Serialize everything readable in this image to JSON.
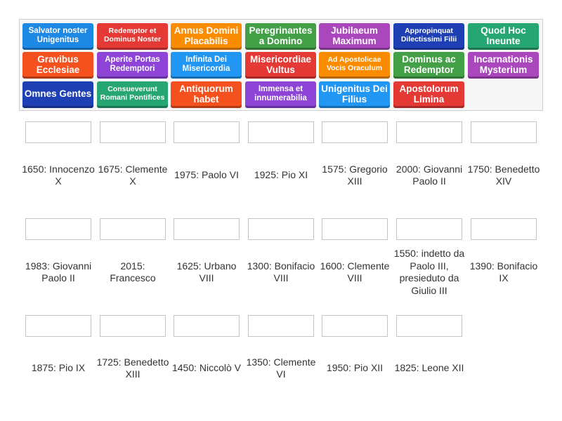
{
  "tiles": [
    {
      "text": "Salvator noster Unigenitus",
      "color": "#1e88e5"
    },
    {
      "text": "Redemptor et Dominus Noster",
      "color": "#e53935"
    },
    {
      "text": "Annus Domini Placabilis",
      "color": "#fb8c00"
    },
    {
      "text": "Peregrinantes a Domino",
      "color": "#43a047"
    },
    {
      "text": "Jubilaeum Maximum",
      "color": "#ab47bc"
    },
    {
      "text": "Appropinquat Dilectissimi Filii",
      "color": "#1e40b4"
    },
    {
      "text": "Quod Hoc Ineunte",
      "color": "#26a672"
    },
    {
      "text": "Gravibus Ecclesiae",
      "color": "#f4511e"
    },
    {
      "text": "Aperite Portas Redemptori",
      "color": "#8e44d6"
    },
    {
      "text": "Infinita Dei Misericordia",
      "color": "#2196f3"
    },
    {
      "text": "Misericordiae Vultus",
      "color": "#e53935"
    },
    {
      "text": "Ad Apostolicae Vocis Oraculum",
      "color": "#fb8c00"
    },
    {
      "text": "Dominus ac Redemptor",
      "color": "#43a047"
    },
    {
      "text": "Incarnationis Mysterium",
      "color": "#ab47bc"
    },
    {
      "text": "Omnes Gentes",
      "color": "#1e40b4"
    },
    {
      "text": "Consueverunt Romani Pontifices",
      "color": "#26a672"
    },
    {
      "text": "Antiquorum habet",
      "color": "#f4511e"
    },
    {
      "text": "Immensa et innumerabilia",
      "color": "#8e44d6"
    },
    {
      "text": "Unigenitus Dei Filius",
      "color": "#2196f3"
    },
    {
      "text": "Apostolorum Limina",
      "color": "#e53935"
    }
  ],
  "answers": [
    "1650: Innocenzo X",
    "1675: Clemente X",
    "1975: Paolo VI",
    "1925: Pio XI",
    "1575: Gregorio XIII",
    "2000: Giovanni Paolo II",
    "1750: Benedetto XIV",
    "1983: Giovanni Paolo II",
    "2015: Francesco",
    "1625: Urbano VIII",
    "1300: Bonifacio VIII",
    "1600: Clemente VIII",
    "1550: indetto da Paolo III, presieduto da Giulio III",
    "1390: Bonifacio IX",
    "1875: Pio IX",
    "1725: Benedetto XIII",
    "1450: Niccolò V",
    "1350: Clemente VI",
    "1950: Pio XII",
    "1825: Leone XII"
  ]
}
